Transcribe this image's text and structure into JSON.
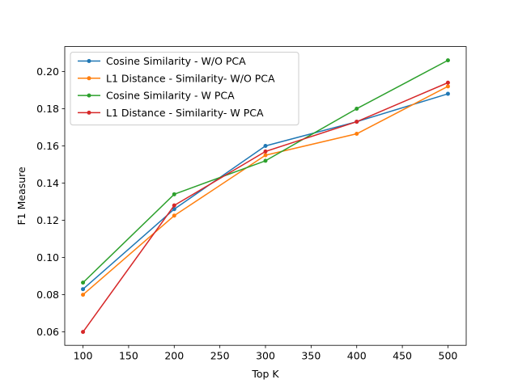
{
  "chart_data": {
    "type": "line",
    "xlabel": "Top K",
    "ylabel": "F1 Measure",
    "x": [
      100,
      200,
      300,
      400,
      500
    ],
    "xlim": [
      80,
      520
    ],
    "ylim": [
      0.0528,
      0.2134
    ],
    "xticks": [
      100,
      150,
      200,
      250,
      300,
      350,
      400,
      450,
      500
    ],
    "yticks": [
      0.06,
      0.08,
      0.1,
      0.12,
      0.14,
      0.16,
      0.18,
      0.2
    ],
    "ytick_decimals": 2,
    "grid": false,
    "legend_position": "upper-left",
    "series": [
      {
        "name": "Cosine Similarity - W/O PCA",
        "color": "#1f77b4",
        "values": [
          0.083,
          0.126,
          0.16,
          0.173,
          0.188
        ]
      },
      {
        "name": "L1 Distance - Similarity- W/O PCA",
        "color": "#ff7f0e",
        "values": [
          0.08,
          0.1225,
          0.155,
          0.1665,
          0.192
        ]
      },
      {
        "name": "Cosine Similarity - W PCA",
        "color": "#2ca02c",
        "values": [
          0.0865,
          0.134,
          0.152,
          0.18,
          0.206
        ]
      },
      {
        "name": "L1 Distance - Similarity- W PCA",
        "color": "#d62728",
        "values": [
          0.06,
          0.128,
          0.157,
          0.173,
          0.194
        ]
      }
    ]
  }
}
